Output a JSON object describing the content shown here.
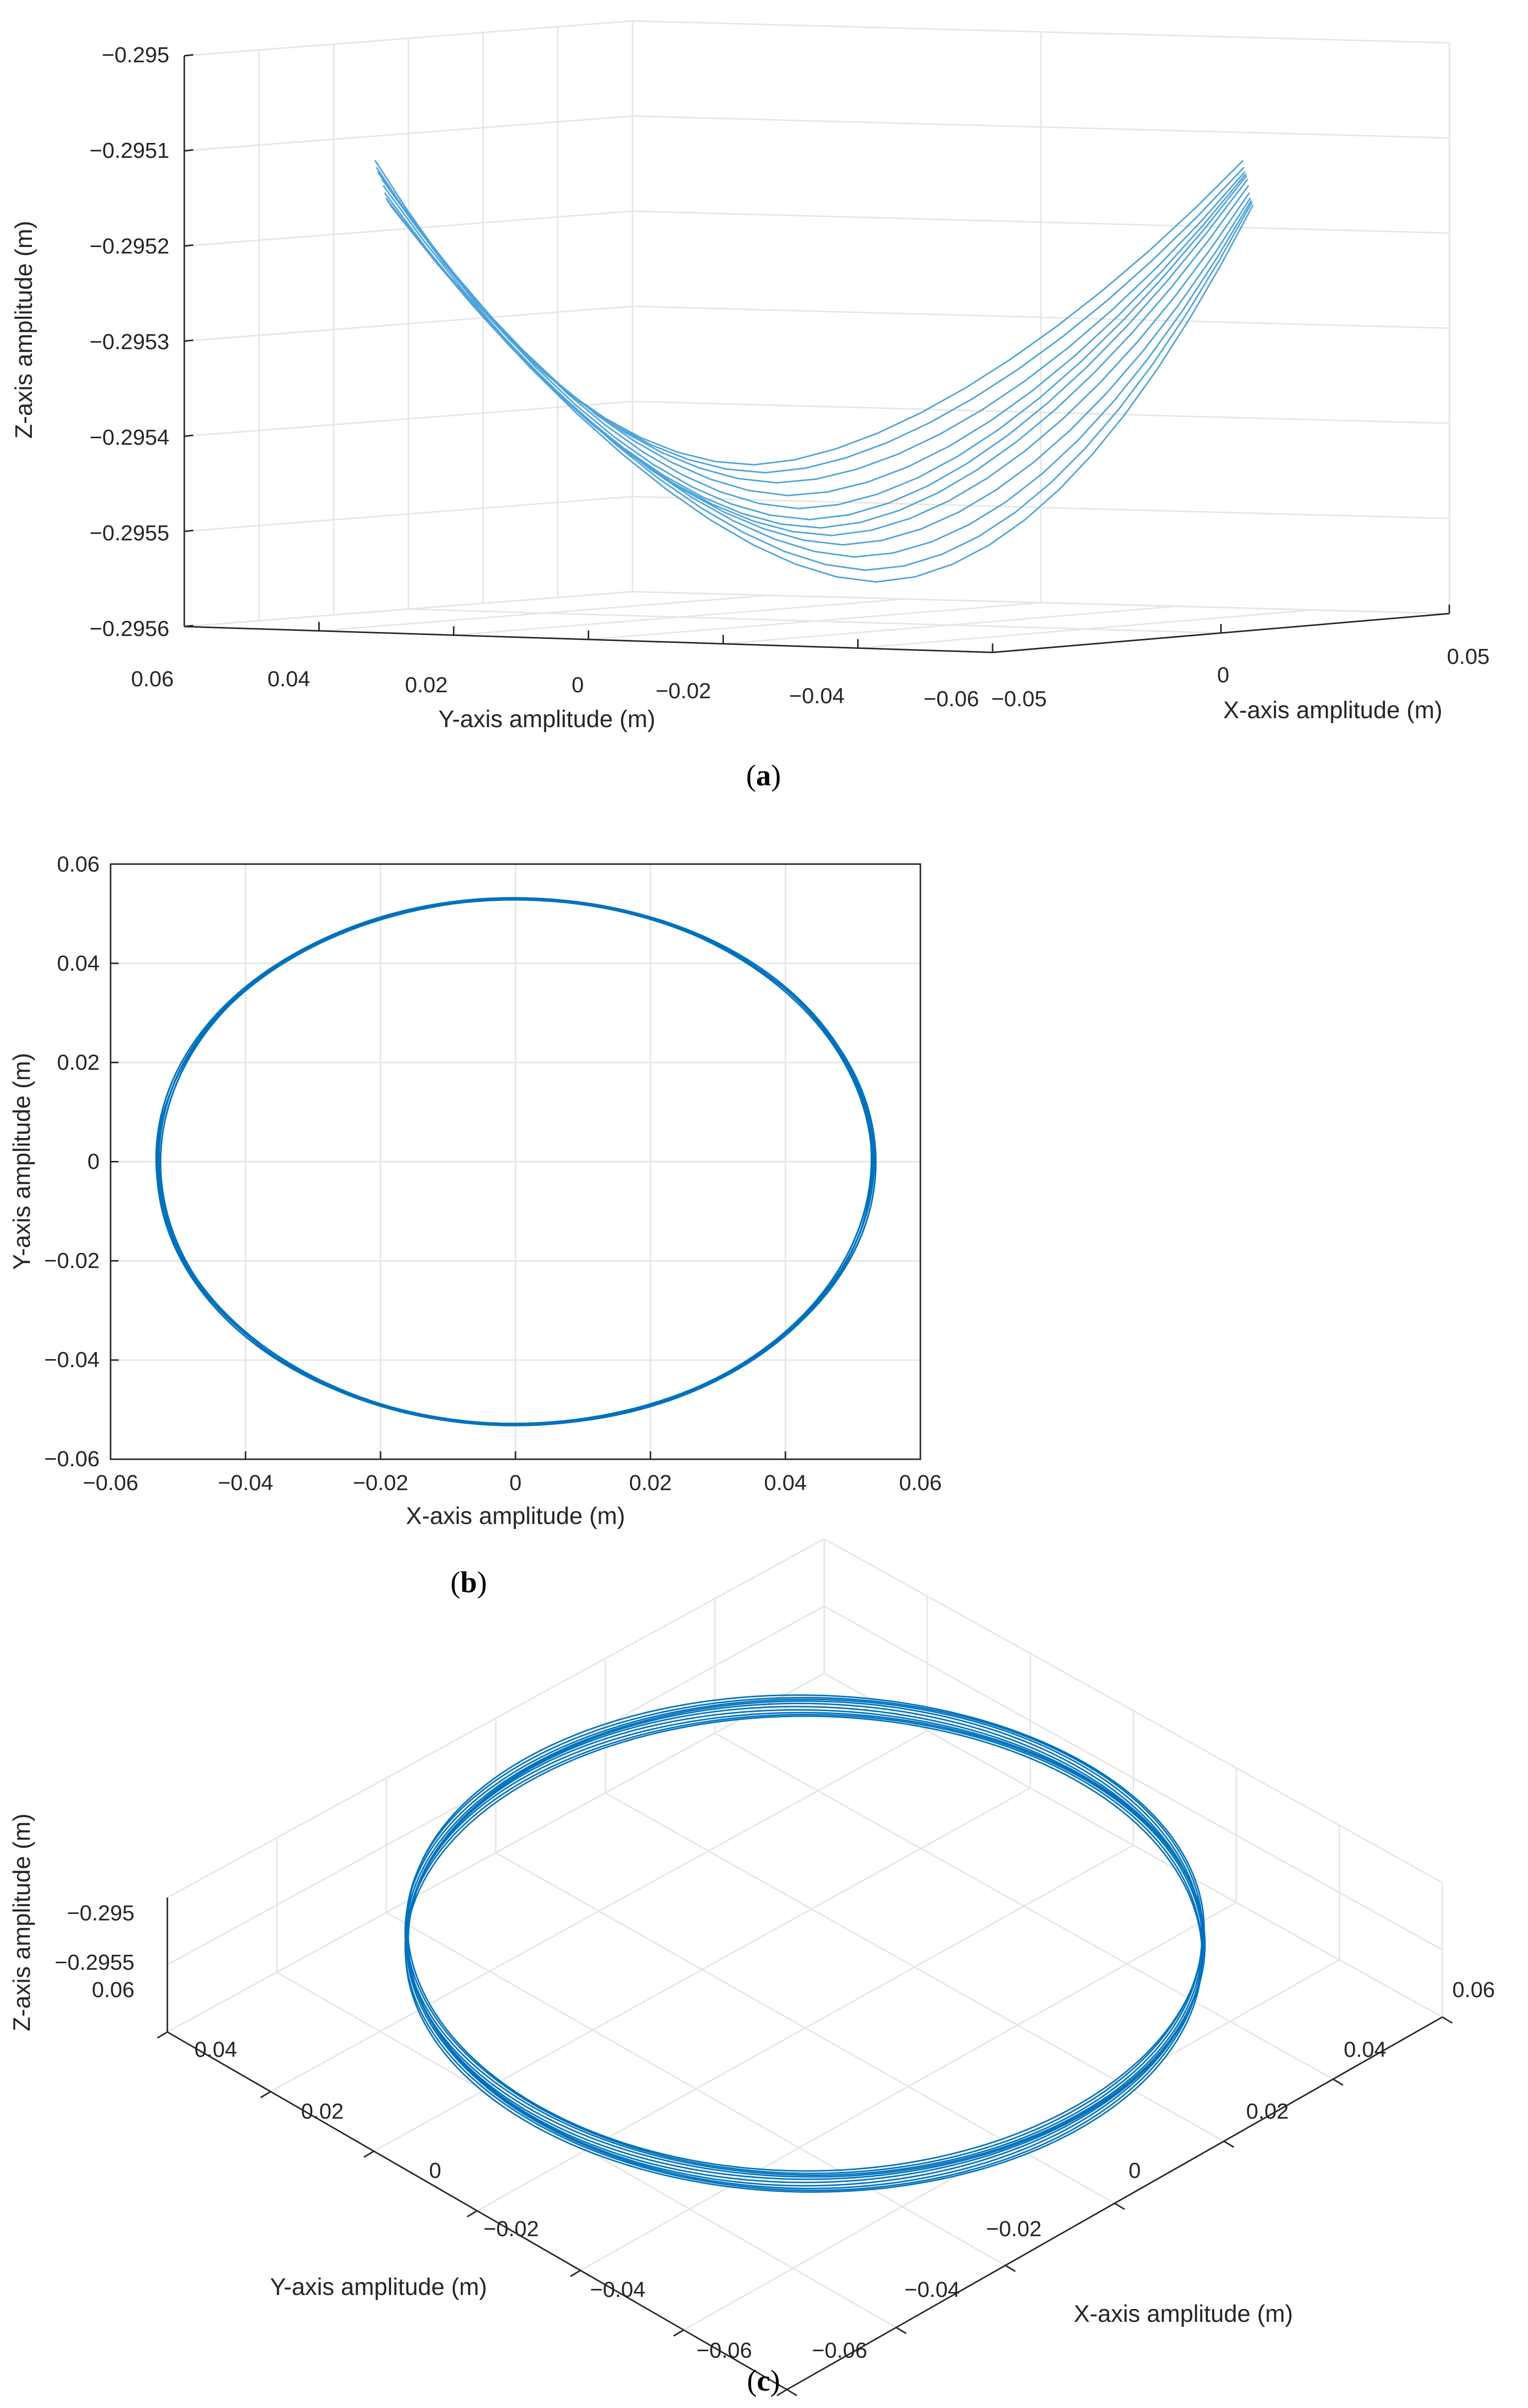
{
  "colors": {
    "line": "#0072BD",
    "grid": "#E6E6E6",
    "axis": "#262626"
  },
  "panels": [
    {
      "caption": "a",
      "caption_open": "(",
      "caption_close": ")"
    },
    {
      "caption": "b",
      "caption_open": "(",
      "caption_close": ")"
    },
    {
      "caption": "c",
      "caption_open": "(",
      "caption_close": ")"
    }
  ],
  "chart_data": [
    {
      "type": "line",
      "view": "3d",
      "title": "",
      "xlabel": "X-axis amplitude (m)",
      "ylabel": "Y-axis amplitude (m)",
      "zlabel": "Z-axis amplitude (m)",
      "x_ticks": [
        "−0.05",
        "0",
        "0.05"
      ],
      "y_ticks": [
        "0.06",
        "0.04",
        "0.02",
        "0",
        "−0.02",
        "−0.04",
        "−0.06"
      ],
      "z_ticks": [
        "−0.295",
        "−0.2951",
        "−0.2952",
        "−0.2953",
        "−0.2954",
        "−0.2955",
        "−0.2956"
      ],
      "zlim": [
        -0.2956,
        -0.295
      ],
      "series_count": 12,
      "description": "Repeated bowl-shaped trajectory segments; z rises from about -0.29555 at the centre to about -0.29511 at the ends"
    },
    {
      "type": "line",
      "view": "2d",
      "title": "",
      "xlabel": "X-axis amplitude (m)",
      "ylabel": "Y-axis amplitude (m)",
      "xlim": [
        -0.06,
        0.06
      ],
      "ylim": [
        -0.06,
        0.06
      ],
      "x_ticks": [
        "−0.06",
        "−0.04",
        "−0.02",
        "0",
        "0.02",
        "0.04",
        "0.06"
      ],
      "y_ticks": [
        "0.06",
        "0.04",
        "0.02",
        "0",
        "−0.02",
        "−0.04",
        "−0.06"
      ],
      "radius": 0.053,
      "series_count": 10,
      "description": "Closed circular trajectory of radius about 0.053 m repeated over several cycles"
    },
    {
      "type": "line",
      "view": "3d",
      "title": "",
      "xlabel": "X-axis amplitude (m)",
      "ylabel": "Y-axis amplitude (m)",
      "zlabel": "Z-axis amplitude (m)",
      "x_ticks": [
        "−0.06",
        "−0.04",
        "−0.02",
        "0",
        "0.02",
        "0.04",
        "0.06"
      ],
      "y_ticks": [
        "0.06",
        "0.04",
        "0.02",
        "0",
        "−0.02",
        "−0.04",
        "−0.06"
      ],
      "z_ticks": [
        "−0.295",
        "−0.2955"
      ],
      "radius": 0.053,
      "series_count": 10,
      "description": "Circular trajectory shown in oblique 3-D view"
    }
  ]
}
